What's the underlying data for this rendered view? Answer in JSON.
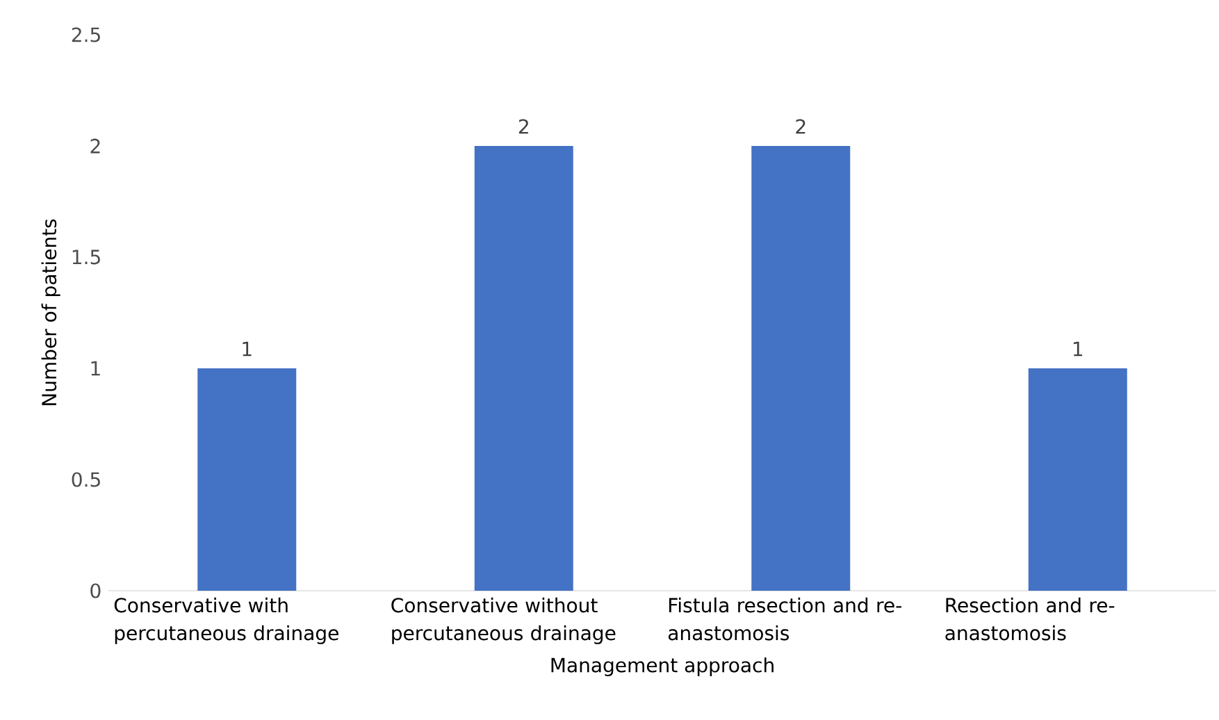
{
  "chart_data": {
    "type": "bar",
    "xlabel": "Management approach",
    "ylabel": "Number of patients",
    "categories": [
      "Conservative with percutaneous drainage",
      "Conservative without percutaneous drainage",
      "Fistula resection and re-anastomosis",
      "Resection and re-anastomosis"
    ],
    "values": [
      1,
      2,
      2,
      1
    ],
    "color": "#4472c4",
    "ylim": [
      0,
      2.5
    ],
    "yticks": [
      0,
      0.5,
      1,
      1.5,
      2,
      2.5
    ],
    "data_labels": true
  }
}
